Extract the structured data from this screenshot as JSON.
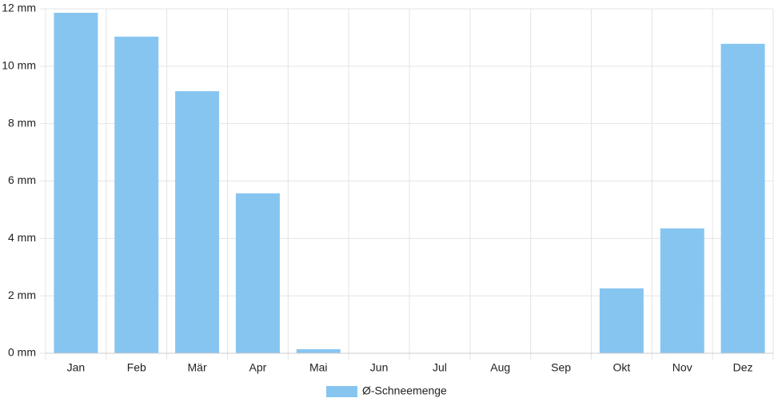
{
  "chart_data": {
    "type": "bar",
    "categories": [
      "Jan",
      "Feb",
      "Mär",
      "Apr",
      "Mai",
      "Jun",
      "Jul",
      "Aug",
      "Sep",
      "Okt",
      "Nov",
      "Dez"
    ],
    "series": [
      {
        "name": "Ø-Schneemenge",
        "color": "#87c5f1",
        "values": [
          11.86,
          11.03,
          9.13,
          5.57,
          0.14,
          0,
          0,
          0,
          0,
          2.26,
          4.35,
          10.78
        ]
      }
    ],
    "ylim": [
      0,
      12
    ],
    "yticks": [
      {
        "value": 0,
        "label": "0 mm"
      },
      {
        "value": 2,
        "label": "2 mm"
      },
      {
        "value": 4,
        "label": "4 mm"
      },
      {
        "value": 6,
        "label": "6 mm"
      },
      {
        "value": 8,
        "label": "8 mm"
      },
      {
        "value": 10,
        "label": "10 mm"
      },
      {
        "value": 12,
        "label": "12 mm"
      }
    ],
    "grid": true,
    "legend": "bottom"
  }
}
